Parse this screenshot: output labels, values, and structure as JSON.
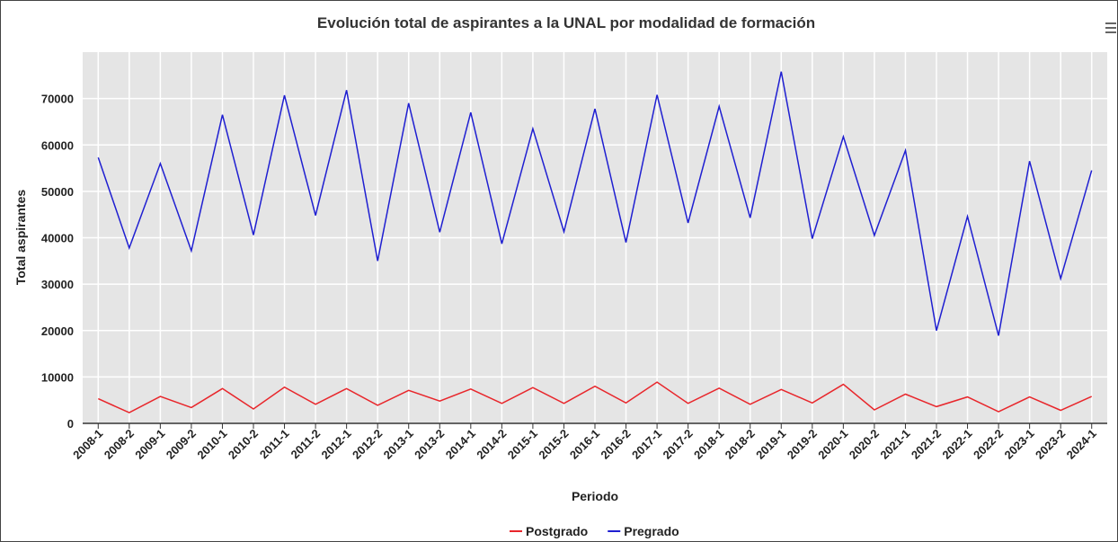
{
  "chart_data": {
    "type": "line",
    "title": "Evolución total de aspirantes a la UNAL por modalidad de formación",
    "x_label": "Periodo",
    "y_label": "Total aspirantes",
    "categories": [
      "2008-1",
      "2008-2",
      "2009-1",
      "2009-2",
      "2010-1",
      "2010-2",
      "2011-1",
      "2011-2",
      "2012-1",
      "2012-2",
      "2013-1",
      "2013-2",
      "2014-1",
      "2014-2",
      "2015-1",
      "2015-2",
      "2016-1",
      "2016-2",
      "2017-1",
      "2017-2",
      "2018-1",
      "2018-2",
      "2019-1",
      "2019-2",
      "2020-1",
      "2020-2",
      "2021-1",
      "2021-2",
      "2022-1",
      "2022-2",
      "2023-1",
      "2023-2",
      "2024-1"
    ],
    "series": [
      {
        "name": "Postgrado",
        "color": "#e8262b",
        "values": [
          5300,
          2300,
          5800,
          3400,
          7500,
          3100,
          7800,
          4100,
          7500,
          3900,
          7100,
          4800,
          7400,
          4300,
          7700,
          4300,
          8000,
          4400,
          8900,
          4300,
          7600,
          4100,
          7300,
          4400,
          8400,
          2900,
          6300,
          3600,
          5700,
          2500,
          5700,
          2800,
          5800
        ]
      },
      {
        "name": "Pregrado",
        "color": "#1f1fd1",
        "values": [
          57300,
          37800,
          56000,
          37200,
          66500,
          40600,
          70700,
          44800,
          71800,
          35000,
          69000,
          41200,
          67000,
          38700,
          63500,
          41300,
          67800,
          39000,
          70800,
          43200,
          68300,
          44300,
          75800,
          39800,
          61800,
          40500,
          58800,
          20000,
          44600,
          18900,
          56500,
          31200,
          54500
        ]
      }
    ],
    "ylim": [
      0,
      80000
    ],
    "yticks": [
      0,
      10000,
      20000,
      30000,
      40000,
      50000,
      60000,
      70000
    ],
    "grid": true,
    "legend": "bottom"
  }
}
